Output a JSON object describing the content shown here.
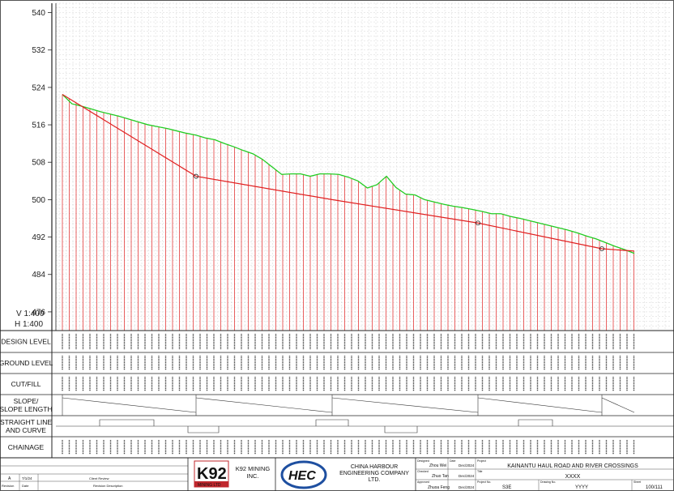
{
  "chart_data": {
    "type": "line",
    "ylim": [
      472,
      542
    ],
    "y_ticks": [
      476,
      484,
      492,
      500,
      508,
      516,
      524,
      532,
      540
    ],
    "scale": {
      "vertical": "V 1:400",
      "horizontal": "H 1:400"
    },
    "series": [
      {
        "role": "ground-level",
        "color": "#22cc22",
        "values": [
          522.5,
          520.5,
          520.0,
          519.4,
          518.8,
          518.3,
          517.8,
          517.2,
          516.6,
          516.0,
          515.6,
          515.2,
          514.7,
          514.2,
          513.8,
          513.2,
          512.8,
          512.0,
          511.3,
          510.5,
          509.8,
          508.6,
          507.0,
          505.4,
          505.5,
          505.5,
          505.0,
          505.5,
          505.5,
          505.4,
          504.8,
          504.0,
          502.5,
          503.2,
          505.0,
          502.6,
          501.2,
          501.0,
          500.0,
          499.5,
          499.0,
          498.6,
          498.3,
          497.9,
          497.5,
          497.0,
          497.0,
          496.4,
          496.0,
          495.5,
          495.0,
          494.5,
          494.0,
          493.5,
          492.9,
          492.2,
          491.6,
          490.8,
          490.0,
          489.3,
          488.5
        ]
      },
      {
        "role": "design-level",
        "color": "#e02020",
        "values": [
          522.5,
          518.3,
          514.1,
          509.9,
          505.7,
          504.9,
          504.0,
          503.2,
          502.4,
          501.6,
          500.9,
          500.0,
          499.3,
          498.6,
          497.8,
          497.0,
          496.1,
          494.9,
          493.7,
          492.4,
          491.1,
          489.9,
          488.7,
          487.8
        ]
      },
      {
        "role": "design-level-x",
        "values": [
          77,
          242,
          410,
          590,
          743,
          783
        ]
      }
    ],
    "row_labels": [
      "DESIGN LEVEL",
      "GROUND LEVEL",
      "CUT/FILL",
      "SLOPE/\nSLOPE LENGTH",
      "STRAIGHT LINE\nAND CURVE",
      "CHAINAGE"
    ]
  },
  "title_block": {
    "k92_logo": "K92",
    "k92_tag": "MINING LTD",
    "k92_company": "K92 MINING\nINC.",
    "hec_logo": "HEC",
    "hec_company": "CHINA HARBOUR\nENGINEERING COMPANY\nLTD.",
    "revision_letter": "A",
    "revision_date": "7/1/24",
    "revision_desc": "Client Review",
    "revision_header": "Revision",
    "date_header": "Date",
    "description_header": "Revision Description",
    "designed_label": "Designed",
    "designed_by": "Zhou Wei",
    "checked_label": "Checked",
    "checked_by": "Zhuo Tan",
    "approved_label": "Approved",
    "approved_by": "Zhuoa Feng",
    "date_label": "Date",
    "date_1": "Dec/2024",
    "date_2": "Dec/2024",
    "date_3": "Dec/2024",
    "project_label": "Project",
    "project": "KAINANTU HAUL ROAD AND RIVER CROSSINGS",
    "title_label": "Title",
    "drawing_title": "XXXX",
    "project_no_label": "Project No.",
    "project_no": "S3E",
    "drawing_no_label": "Drawing No.",
    "drawing_no": "YYYY",
    "sheet_label": "Sheet",
    "sheet": "100/111"
  }
}
